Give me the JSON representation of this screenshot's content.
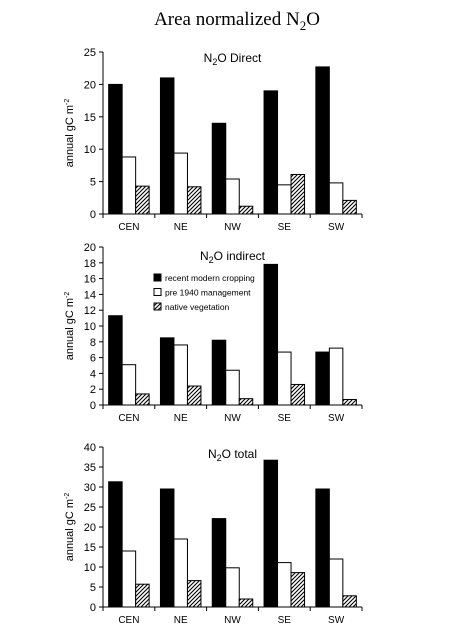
{
  "figure": {
    "title_main": "Area normalized N",
    "title_sub": "2",
    "title_end": "O"
  },
  "legend": {
    "items": [
      {
        "label": "recent modern cropping",
        "color": "#000000",
        "pattern": "solid"
      },
      {
        "label": "pre 1940 management",
        "color": "#ffffff",
        "pattern": "open"
      },
      {
        "label": "native vegetation",
        "color": "#ffffff",
        "pattern": "hatch"
      }
    ]
  },
  "chart_data": [
    {
      "type": "bar",
      "title_pre": "N",
      "title_sub": "2",
      "title_post": "O Direct",
      "ylabel_pre": "annual gC m",
      "ylabel_sup": "-2",
      "ylim": [
        0,
        25
      ],
      "yticks": [
        "0",
        "5",
        "10",
        "15",
        "20",
        "25"
      ],
      "categories": [
        "CEN",
        "NE",
        "NW",
        "SE",
        "SW"
      ],
      "series": [
        {
          "name": "recent modern cropping",
          "values": [
            20,
            21,
            14,
            19,
            22.7
          ]
        },
        {
          "name": "pre 1940 management",
          "values": [
            8.8,
            9.4,
            5.4,
            4.5,
            4.8
          ]
        },
        {
          "name": "native vegetation",
          "values": [
            4.3,
            4.2,
            1.2,
            6.1,
            2.1
          ]
        }
      ]
    },
    {
      "type": "bar",
      "title_pre": "N",
      "title_sub": "2",
      "title_post": "O indirect",
      "ylabel_pre": "annual gC m",
      "ylabel_sup": "-2",
      "ylim": [
        0,
        20
      ],
      "yticks": [
        "0",
        "2",
        "4",
        "6",
        "8",
        "10",
        "12",
        "14",
        "16",
        "18",
        "20"
      ],
      "categories": [
        "CEN",
        "NE",
        "NW",
        "SE",
        "SW"
      ],
      "series": [
        {
          "name": "recent modern cropping",
          "values": [
            11.3,
            8.5,
            8.2,
            17.8,
            6.7
          ]
        },
        {
          "name": "pre 1940 management",
          "values": [
            5.1,
            7.6,
            4.4,
            6.7,
            7.2
          ]
        },
        {
          "name": "native vegetation",
          "values": [
            1.4,
            2.4,
            0.8,
            2.6,
            0.7
          ]
        }
      ]
    },
    {
      "type": "bar",
      "title_pre": "N",
      "title_sub": "2",
      "title_post": "O total",
      "ylabel_pre": "annual gC m",
      "ylabel_sup": "-2",
      "ylim": [
        0,
        40
      ],
      "yticks": [
        "0",
        "5",
        "10",
        "15",
        "20",
        "25",
        "30",
        "35",
        "40"
      ],
      "categories": [
        "CEN",
        "NE",
        "NW",
        "SE",
        "SW"
      ],
      "series": [
        {
          "name": "recent modern cropping",
          "values": [
            31.3,
            29.5,
            22.1,
            36.7,
            29.5
          ]
        },
        {
          "name": "pre 1940 management",
          "values": [
            14,
            17,
            9.8,
            11.1,
            12
          ]
        },
        {
          "name": "native vegetation",
          "values": [
            5.7,
            6.6,
            2,
            8.6,
            2.8
          ]
        }
      ]
    }
  ]
}
